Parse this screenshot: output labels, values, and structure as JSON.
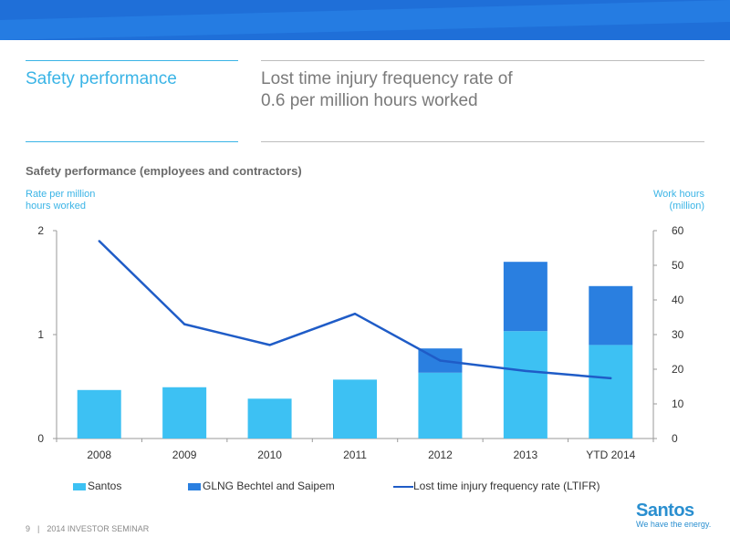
{
  "header": {
    "section_title": "Safety performance",
    "headline_line1": "Lost time injury frequency rate of",
    "headline_line2": "0.6 per million hours worked"
  },
  "colors": {
    "accent": "#3ab4e6",
    "santos_bar": "#3dc1f3",
    "glng_bar": "#2a7fe0",
    "ltifr_line": "#1f5cc7",
    "band_dark": "#1f6fd8",
    "band_light": "#2a85ea"
  },
  "chart_data": {
    "type": "bar",
    "title": "Safety performance (employees and contractors)",
    "left_axis_label_line1": "Rate per million",
    "left_axis_label_line2": "hours worked",
    "right_axis_label_line1": "Work hours",
    "right_axis_label_line2": "(million)",
    "categories": [
      "2008",
      "2009",
      "2010",
      "2011",
      "2012",
      "2013",
      "YTD 2014"
    ],
    "left_ticks": [
      "0",
      "1",
      "2"
    ],
    "right_ticks": [
      "0",
      "10",
      "20",
      "30",
      "40",
      "50",
      "60"
    ],
    "ylim_left": [
      0,
      2
    ],
    "ylim_right": [
      0,
      60
    ],
    "stacked": true,
    "series": [
      {
        "name": "Santos",
        "kind": "bar",
        "axis": "right",
        "values": [
          14,
          14.8,
          11.5,
          17,
          19,
          31,
          27
        ]
      },
      {
        "name": "GLNG Bechtel and Saipem",
        "kind": "bar",
        "axis": "right",
        "values": [
          0,
          0,
          0,
          0,
          7,
          20,
          17
        ]
      },
      {
        "name": "Lost time injury frequency rate (LTIFR)",
        "kind": "line",
        "axis": "left",
        "values": [
          1.9,
          1.1,
          0.9,
          1.2,
          0.75,
          0.65,
          0.58
        ]
      }
    ],
    "legend_position": "bottom",
    "grid": false
  },
  "footer": {
    "page_number": "9",
    "separator": "|",
    "event": "2014 INVESTOR SEMINAR"
  },
  "logo": {
    "brand": "Santos",
    "tagline": "We have the energy."
  }
}
